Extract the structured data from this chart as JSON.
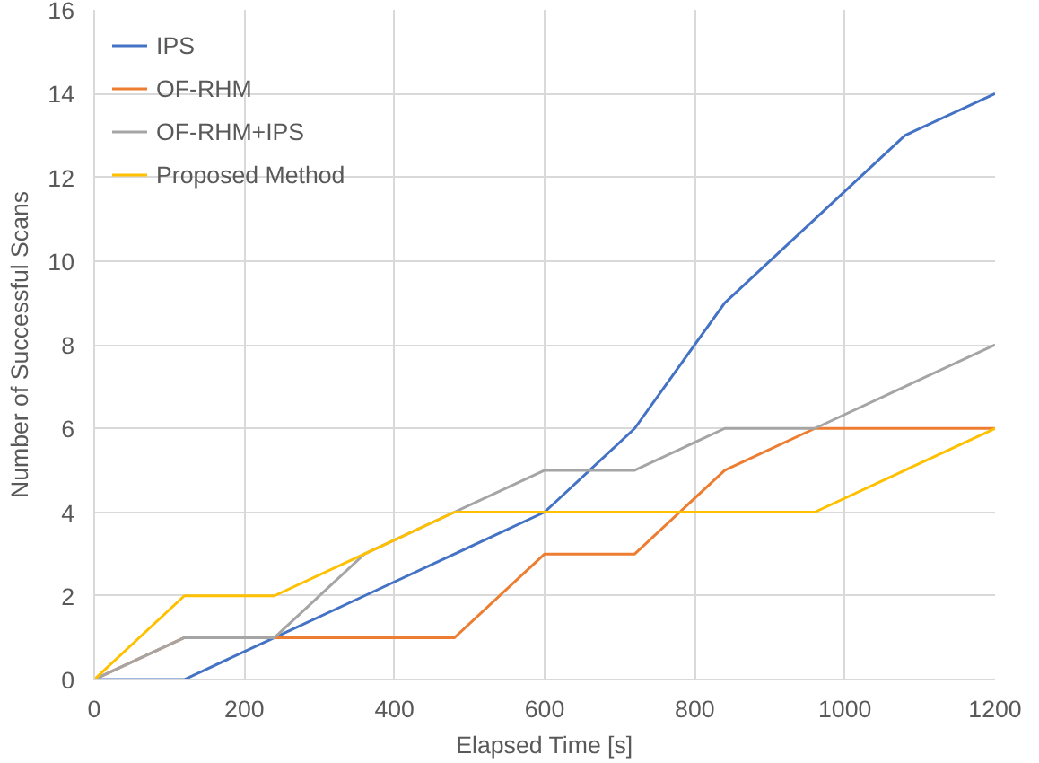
{
  "chart_data": {
    "type": "line",
    "xlabel": "Elapsed Time [s]",
    "ylabel": "Number of Successful Scans",
    "x": [
      0,
      120,
      240,
      360,
      480,
      600,
      720,
      840,
      960,
      1080,
      1200
    ],
    "series": [
      {
        "name": "IPS",
        "color": "#4472c4",
        "values": [
          0,
          0,
          1,
          2,
          3,
          4,
          6,
          9,
          11,
          13,
          14
        ]
      },
      {
        "name": "OF-RHM",
        "color": "#ed7d31",
        "values": [
          0,
          1,
          1,
          1,
          1,
          3,
          3,
          5,
          6,
          6,
          6
        ]
      },
      {
        "name": "OF-RHM+IPS",
        "color": "#a5a5a5",
        "values": [
          0,
          1,
          1,
          3,
          4,
          5,
          5,
          6,
          6,
          7,
          8
        ]
      },
      {
        "name": "Proposed Method",
        "color": "#ffc000",
        "values": [
          0,
          2,
          2,
          3,
          4,
          4,
          4,
          4,
          4,
          5,
          6
        ]
      }
    ],
    "xlim": [
      0,
      1200
    ],
    "xticks": [
      0,
      200,
      400,
      600,
      800,
      1000,
      1200
    ],
    "ylim": [
      0,
      16
    ],
    "yticks": [
      0,
      2,
      4,
      6,
      8,
      10,
      12,
      14,
      16
    ],
    "grid": true,
    "legend": "top left",
    "marker": "none",
    "line_style": "solid"
  }
}
